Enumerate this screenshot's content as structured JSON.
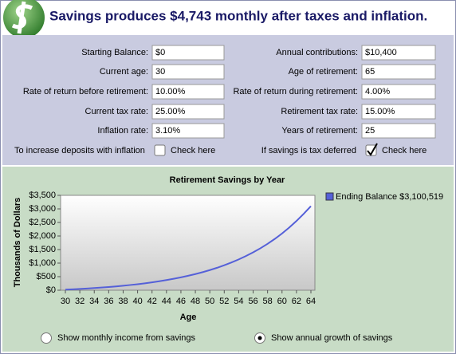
{
  "header": {
    "title": "Savings produces $4,743 monthly after taxes and inflation."
  },
  "form": {
    "left": [
      {
        "label": "Starting Balance:",
        "value": "$0"
      },
      {
        "label": "Current age:",
        "value": "30"
      },
      {
        "label": "Rate of return before retirement:",
        "value": "10.00%"
      },
      {
        "label": "Current tax rate:",
        "value": "25.00%"
      },
      {
        "label": "Inflation rate:",
        "value": "3.10%"
      }
    ],
    "right": [
      {
        "label": "Annual contributions:",
        "value": "$10,400"
      },
      {
        "label": "Age of retirement:",
        "value": "65"
      },
      {
        "label": "Rate of return during retirement:",
        "value": "4.00%"
      },
      {
        "label": "Retirement tax rate:",
        "value": "15.00%"
      },
      {
        "label": "Years of retirement:",
        "value": "25"
      }
    ],
    "options": [
      {
        "label": "To increase deposits with inflation",
        "box": "Check here",
        "checked": false
      },
      {
        "label": "If savings is tax deferred",
        "box": "Check here",
        "checked": true
      }
    ]
  },
  "chart_data": {
    "type": "line",
    "title": "Retirement Savings by Year",
    "x_label": "Age",
    "y_label": "Thousands of Dollars",
    "x": [
      30,
      31,
      32,
      33,
      34,
      35,
      36,
      37,
      38,
      39,
      40,
      41,
      42,
      43,
      44,
      45,
      46,
      47,
      48,
      49,
      50,
      51,
      52,
      53,
      54,
      55,
      56,
      57,
      58,
      59,
      60,
      61,
      62,
      63,
      64
    ],
    "series": [
      {
        "name": "Ending Balance $3,100,519",
        "color": "#5560d8",
        "values": [
          22,
          34,
          48,
          64,
          80,
          99,
          119,
          141,
          166,
          193,
          222,
          255,
          291,
          330,
          374,
          422,
          474,
          532,
          596,
          666,
          743,
          827,
          920,
          1023,
          1136,
          1260,
          1396,
          1546,
          1711,
          1893,
          2092,
          2312,
          2554,
          2819,
          3100.5
        ]
      }
    ],
    "xlim": [
      30,
      64
    ],
    "xticks": [
      30,
      32,
      34,
      36,
      38,
      40,
      42,
      44,
      46,
      48,
      50,
      52,
      54,
      56,
      58,
      60,
      62,
      64
    ],
    "ylim": [
      0,
      3500
    ],
    "yticks": [
      {
        "value": 0,
        "label": "$0"
      },
      {
        "value": 500,
        "label": "$500"
      },
      {
        "value": 1000,
        "label": "$1,000"
      },
      {
        "value": 1500,
        "label": "$1,500"
      },
      {
        "value": 2000,
        "label": "$2,000"
      },
      {
        "value": 2500,
        "label": "$2,500"
      },
      {
        "value": 3000,
        "label": "$3,000"
      },
      {
        "value": 3500,
        "label": "$3,500"
      }
    ],
    "legend": "right"
  },
  "view": [
    {
      "label": "Show monthly income from savings",
      "selected": false
    },
    {
      "label": "Show annual growth of savings",
      "selected": true
    }
  ]
}
